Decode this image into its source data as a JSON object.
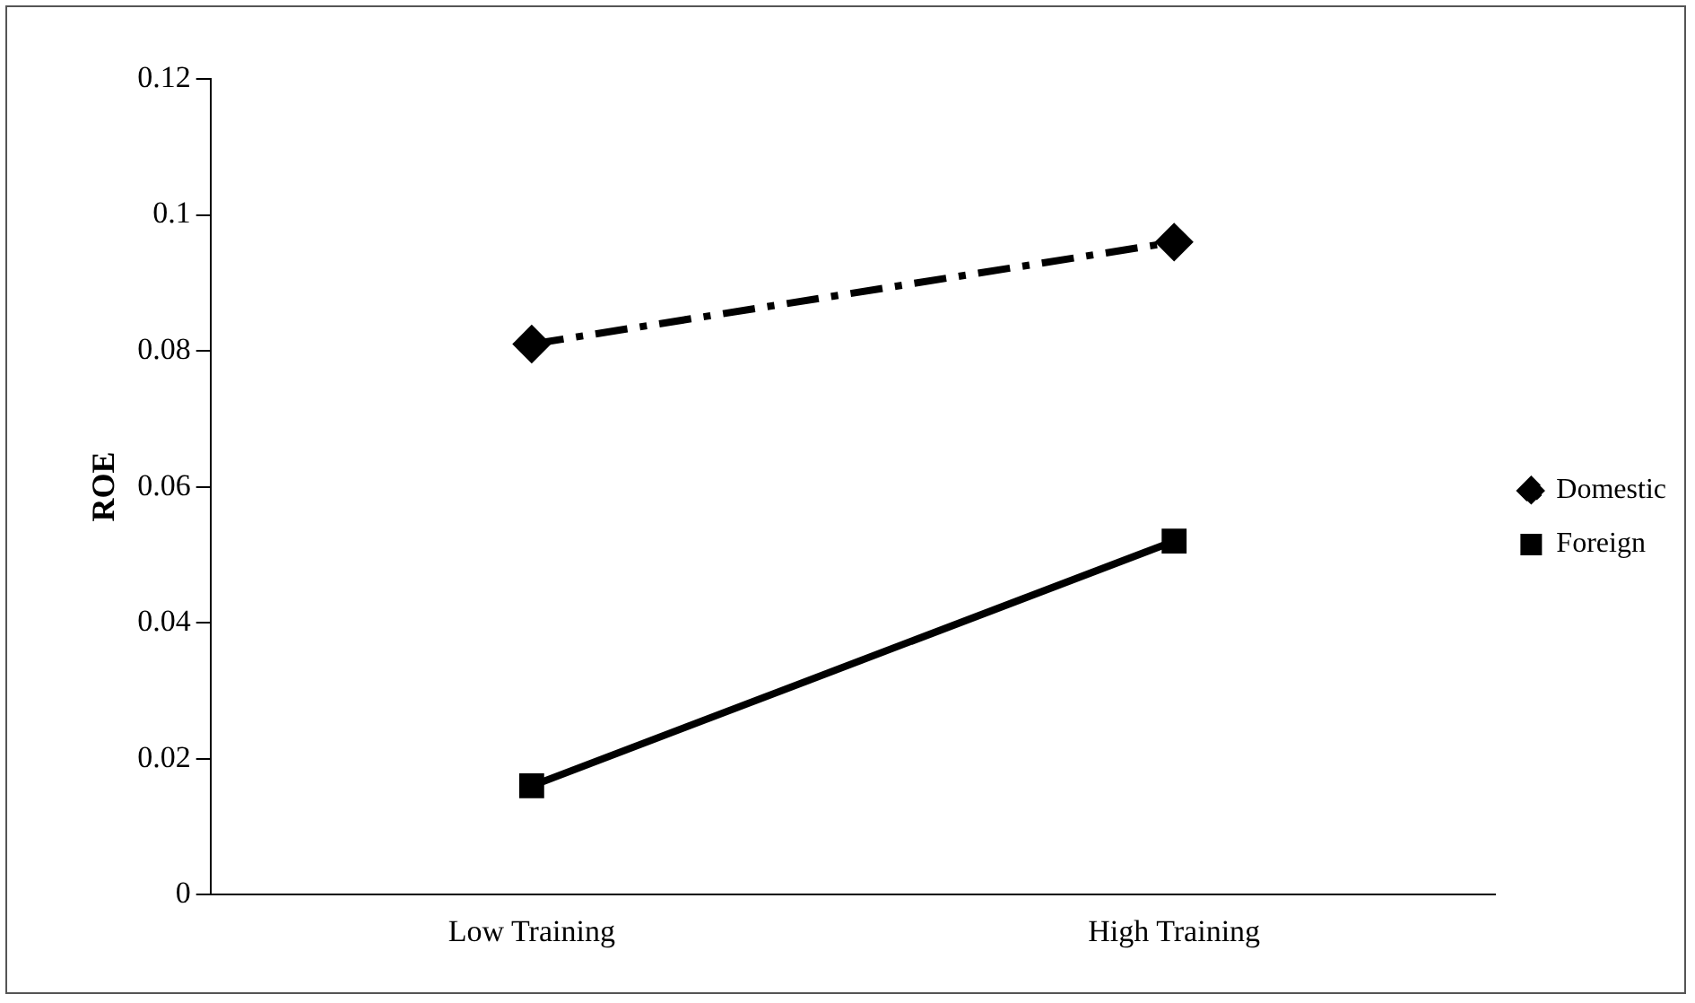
{
  "chart_data": {
    "type": "line",
    "ylabel": "ROE",
    "categories": [
      "Low Training",
      "High Training"
    ],
    "series": [
      {
        "name": "Domestic",
        "color": "#000000",
        "values": [
          0.081,
          0.096
        ],
        "marker": "diamond",
        "line_style": "dashed"
      },
      {
        "name": "Foreign",
        "color": "#000000",
        "values": [
          0.016,
          0.052
        ],
        "marker": "square",
        "line_style": "solid"
      }
    ],
    "ylim": [
      0,
      0.12
    ],
    "yticks": [
      0,
      0.02,
      0.04,
      0.06,
      0.08,
      0.1,
      0.12
    ],
    "grid": false,
    "legend": "right"
  }
}
